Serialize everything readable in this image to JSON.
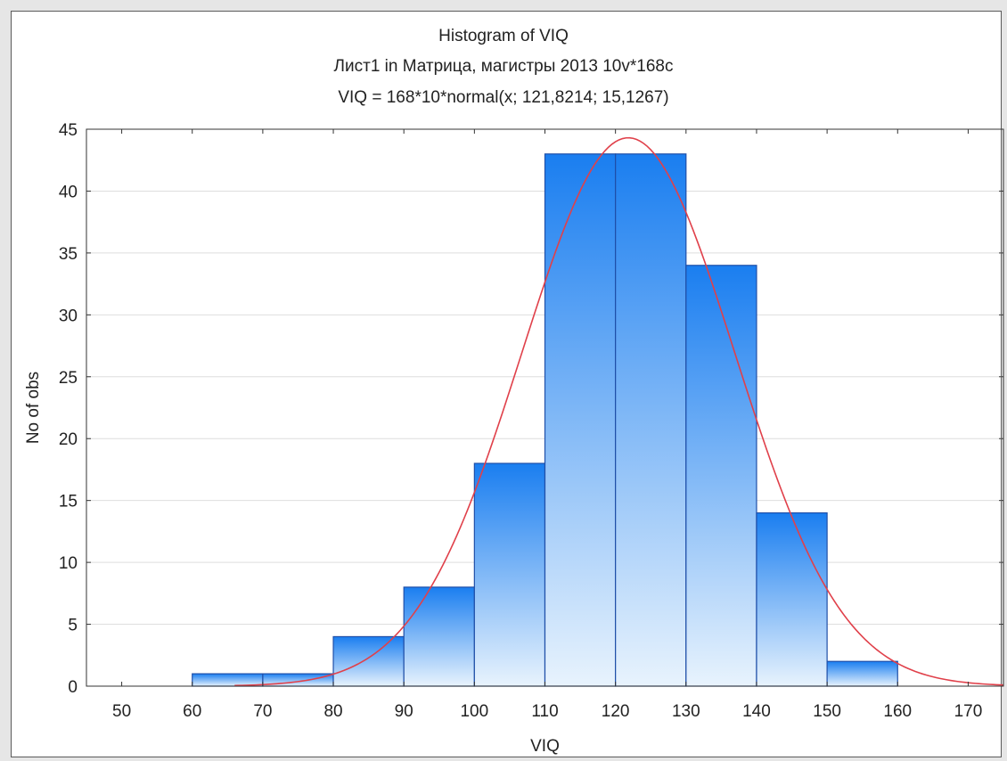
{
  "chart_data": {
    "type": "bar",
    "title": "Histogram of VIQ",
    "subtitle": "Лист1 in Матрица, магистры 2013 10v*168c",
    "formula": "VIQ = 168*10*normal(x; 121,8214; 15,1267)",
    "xlabel": "VIQ",
    "ylabel": "No of obs",
    "xlim": [
      45,
      175
    ],
    "ylim": [
      0,
      45
    ],
    "xticks": [
      50,
      60,
      70,
      80,
      90,
      100,
      110,
      120,
      130,
      140,
      150,
      160,
      170
    ],
    "yticks": [
      0,
      5,
      10,
      15,
      20,
      25,
      30,
      35,
      40,
      45
    ],
    "bins": [
      {
        "from": 60,
        "to": 70,
        "count": 1
      },
      {
        "from": 70,
        "to": 80,
        "count": 1
      },
      {
        "from": 80,
        "to": 90,
        "count": 4
      },
      {
        "from": 90,
        "to": 100,
        "count": 8
      },
      {
        "from": 100,
        "to": 110,
        "count": 18
      },
      {
        "from": 110,
        "to": 120,
        "count": 43
      },
      {
        "from": 120,
        "to": 130,
        "count": 43
      },
      {
        "from": 130,
        "to": 140,
        "count": 34
      },
      {
        "from": 140,
        "to": 150,
        "count": 14
      },
      {
        "from": 150,
        "to": 160,
        "count": 2
      }
    ],
    "normal_fit": {
      "n": 168,
      "bin_width": 10,
      "mean": 121.8214,
      "sd": 15.1267,
      "color": "#e0404a"
    },
    "grid": true,
    "bar_color_top": "#1a7ef0",
    "bar_color_bottom": "#e8f3fd",
    "bar_edge_color": "#1f4fa8"
  }
}
